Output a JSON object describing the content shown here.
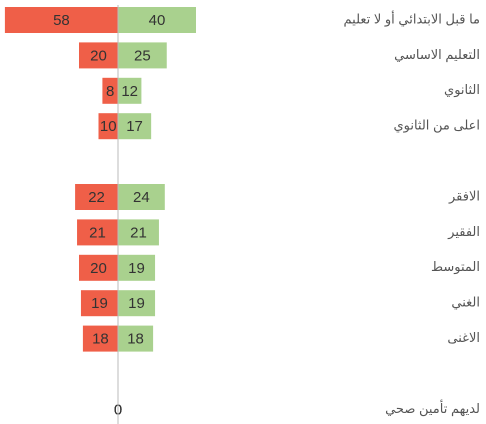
{
  "chart_data": {
    "type": "diverging-bar",
    "categories": [
      "ما قبل الابتدائي أو لا تعليم",
      "التعليم الاساسي",
      "الثانوي",
      "اعلى من الثانوي",
      null,
      "الافقر",
      "الفقير",
      "المتوسط",
      "الغني",
      "الاغنى",
      null,
      "لديهم تأمين صحي"
    ],
    "series": [
      {
        "color": "#ef5f48",
        "values": [
          58,
          20,
          8,
          10,
          null,
          22,
          21,
          20,
          19,
          18,
          null,
          0
        ]
      },
      {
        "color": "#a9d18e",
        "values": [
          40,
          25,
          12,
          17,
          null,
          24,
          21,
          19,
          19,
          18,
          null,
          0
        ]
      }
    ],
    "xlim": [
      0,
      60
    ]
  }
}
